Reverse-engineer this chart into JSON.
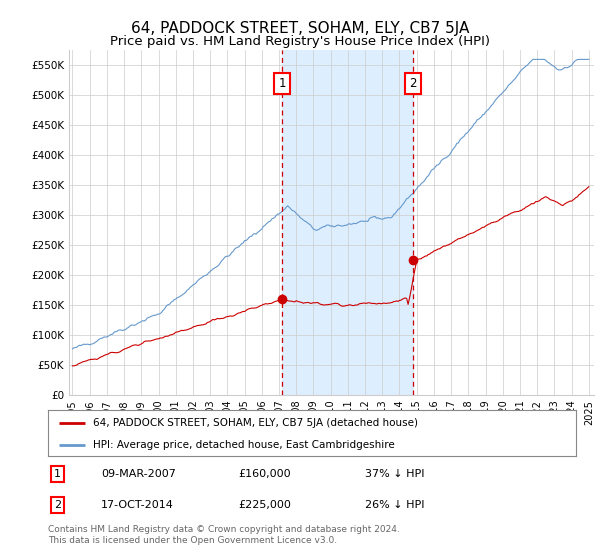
{
  "title": "64, PADDOCK STREET, SOHAM, ELY, CB7 5JA",
  "subtitle": "Price paid vs. HM Land Registry's House Price Index (HPI)",
  "ylim": [
    0,
    575000
  ],
  "yticks": [
    0,
    50000,
    100000,
    150000,
    200000,
    250000,
    300000,
    350000,
    400000,
    450000,
    500000,
    550000
  ],
  "ytick_labels": [
    "£0",
    "£50K",
    "£100K",
    "£150K",
    "£200K",
    "£250K",
    "£300K",
    "£350K",
    "£400K",
    "£450K",
    "£500K",
    "£550K"
  ],
  "xlim_start": 1994.8,
  "xlim_end": 2025.3,
  "marker1_x": 2007.19,
  "marker1_y": 160000,
  "marker1_label": "1",
  "marker1_date": "09-MAR-2007",
  "marker1_price": "£160,000",
  "marker1_hpi": "37% ↓ HPI",
  "marker2_x": 2014.79,
  "marker2_y": 225000,
  "marker2_label": "2",
  "marker2_date": "17-OCT-2014",
  "marker2_price": "£225,000",
  "marker2_hpi": "26% ↓ HPI",
  "line_red_color": "#cc0000",
  "line_blue_color": "#6699cc",
  "shade_color": "#ddeeff",
  "background_color": "#ffffff",
  "grid_color": "#cccccc",
  "legend_red_label": "64, PADDOCK STREET, SOHAM, ELY, CB7 5JA (detached house)",
  "legend_blue_label": "HPI: Average price, detached house, East Cambridgeshire",
  "footer": "Contains HM Land Registry data © Crown copyright and database right 2024.\nThis data is licensed under the Open Government Licence v3.0.",
  "title_fontsize": 11,
  "subtitle_fontsize": 9.5
}
